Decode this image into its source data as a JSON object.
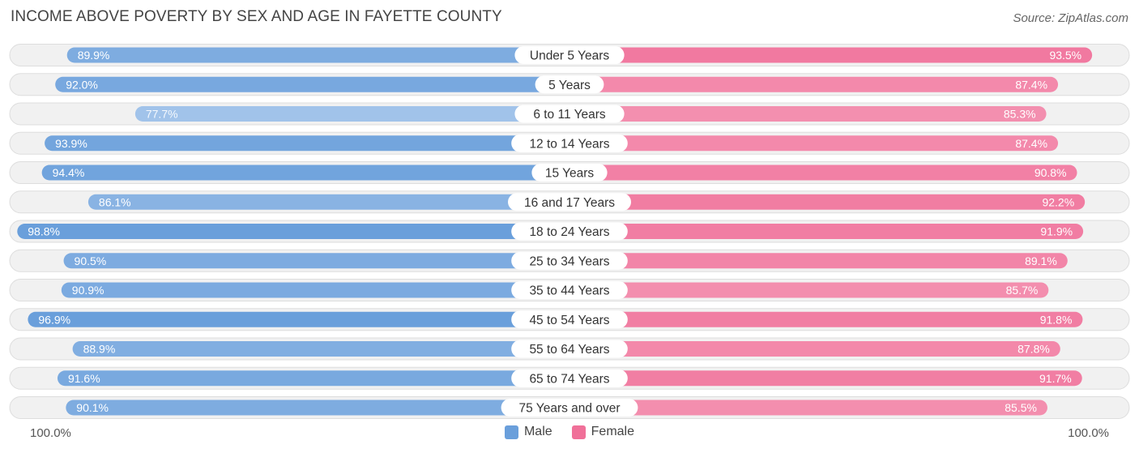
{
  "header": {
    "title": "INCOME ABOVE POVERTY BY SEX AND AGE IN FAYETTE COUNTY",
    "source": "Source: ZipAtlas.com"
  },
  "axis": {
    "left_label": "100.0%",
    "right_label": "100.0%"
  },
  "legend": {
    "male_label": "Male",
    "female_label": "Female"
  },
  "colors": {
    "male_strong": "#6a9fdb",
    "male_light": "#a9c8ec",
    "female_strong": "#f07099",
    "female_light": "#f6aac2",
    "track": "#efefef"
  },
  "chart_data": {
    "type": "bar",
    "orientation": "horizontal-diverging",
    "title": "INCOME ABOVE POVERTY BY SEX AND AGE IN FAYETTE COUNTY",
    "categories": [
      "Under 5 Years",
      "5 Years",
      "6 to 11 Years",
      "12 to 14 Years",
      "15 Years",
      "16 and 17 Years",
      "18 to 24 Years",
      "25 to 34 Years",
      "35 to 44 Years",
      "45 to 54 Years",
      "55 to 64 Years",
      "65 to 74 Years",
      "75 Years and over"
    ],
    "series": [
      {
        "name": "Male",
        "values": [
          89.9,
          92.0,
          77.7,
          93.9,
          94.4,
          86.1,
          98.8,
          90.5,
          90.9,
          96.9,
          88.9,
          91.6,
          90.1
        ],
        "labels": [
          "89.9%",
          "92.0%",
          "77.7%",
          "93.9%",
          "94.4%",
          "86.1%",
          "98.8%",
          "90.5%",
          "90.9%",
          "96.9%",
          "88.9%",
          "91.6%",
          "90.1%"
        ]
      },
      {
        "name": "Female",
        "values": [
          93.5,
          87.4,
          85.3,
          87.4,
          90.8,
          92.2,
          91.9,
          89.1,
          85.7,
          91.8,
          87.8,
          91.7,
          85.5
        ],
        "labels": [
          "93.5%",
          "87.4%",
          "85.3%",
          "87.4%",
          "90.8%",
          "92.2%",
          "91.9%",
          "89.1%",
          "85.7%",
          "91.8%",
          "87.8%",
          "91.7%",
          "85.5%"
        ]
      }
    ],
    "xlim": [
      0,
      100
    ],
    "legend_position": "bottom-center"
  }
}
